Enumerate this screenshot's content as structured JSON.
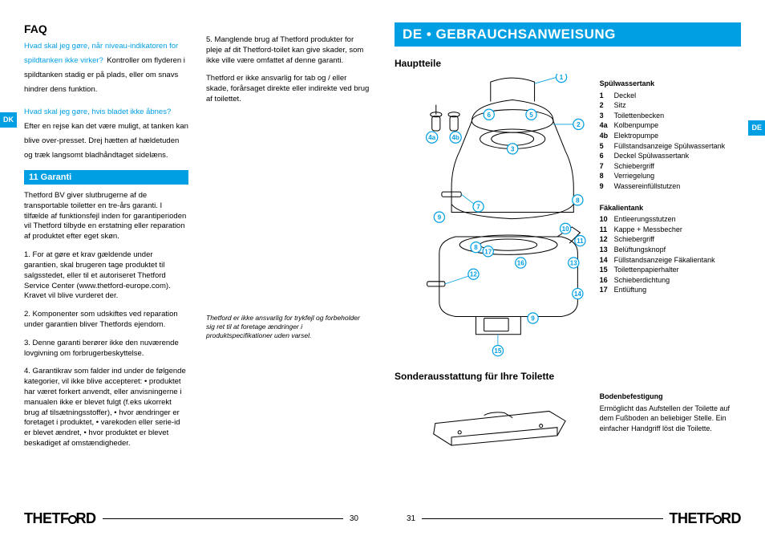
{
  "langTabs": {
    "left": "DK",
    "right": "DE"
  },
  "pageLeft": {
    "faqHeading": "FAQ",
    "faq": [
      {
        "q": "Hvad skal jeg gøre, når niveau-indikatoren for spildtanken ikke virker?",
        "a": "Kontroller om flyderen i spildtanken stadig er på plads, eller om snavs hindrer dens funktion."
      },
      {
        "q": "Hvad skal jeg gøre, hvis bladet ikke åbnes?",
        "a": "Efter en rejse kan det være muligt, at tanken kan blive over-presset. Drej hætten af hældetuden og træk langsomt bladhåndtaget sidelæns."
      }
    ],
    "sectionBar": "11  Garanti",
    "warrantyIntro": "Thetford BV giver slutbrugerne af de transportable toiletter en tre-års garanti. I tilfælde af funktionsfejl inden for garantiperioden vil Thetford tilbyde en erstatning eller reparation af produktet efter eget skøn.",
    "warrantyPoints": [
      "1. For at gøre et krav gældende under garantien, skal brugeren tage produktet til salgsstedet, eller til et autoriseret Thetford Service Center (www.thetford-europe.com). Kravet vil blive vurderet der.",
      "2. Komponenter som udskiftes ved reparation under garantien bliver Thetfords ejendom.",
      "3. Denne garanti berører ikke den nuværende lovgivning om forbrugerbeskyttelse.",
      "4. Garantikrav som falder ind under de følgende kategorier, vil ikke blive accepteret: • produktet har været forkert anvendt, eller anvisningerne i manualen ikke er blevet fulgt (f.eks ukorrekt brug af tilsætningsstoffer), • hvor ændringer er foretaget i produktet, • varekoden eller serie-id er blevet ændret, • hvor produktet er blevet beskadiget af omstændigheder."
    ],
    "col2": [
      "5. Manglende brug af Thetford produkter for pleje af dit Thetford-toilet kan give skader, som ikke ville være omfattet af denne garanti.",
      "Thetford er ikke ansvarlig for tab og / eller skade, forårsaget direkte eller indirekte ved brug af toilettet."
    ],
    "disclaimer": "Thetford er ikke ansvarlig for trykfejl og forbeholder sig ret til at foretage ændringer i produktspecifikationer uden varsel.",
    "pageNum": "30"
  },
  "pageRight": {
    "titleBar": "DE • GEBRAUCHSANWEISUNG",
    "mainHeading": "Hauptteile",
    "spuelTitle": "Spülwassertank",
    "spuel": [
      {
        "n": "1",
        "l": "Deckel"
      },
      {
        "n": "2",
        "l": "Sitz"
      },
      {
        "n": "3",
        "l": "Toilettenbecken"
      },
      {
        "n": "4a",
        "l": "Kolbenpumpe"
      },
      {
        "n": "4b",
        "l": "Elektropumpe"
      },
      {
        "n": "5",
        "l": "Füllstandsanzeige Spülwassertank"
      },
      {
        "n": "6",
        "l": "Deckel Spülwassertank"
      },
      {
        "n": "7",
        "l": "Schiebergriff"
      },
      {
        "n": "8",
        "l": "Verriegelung"
      },
      {
        "n": "9",
        "l": "Wassereinfüllstutzen"
      }
    ],
    "faekTitle": "Fäkalientank",
    "faek": [
      {
        "n": "10",
        "l": "Entleerungsstutzen"
      },
      {
        "n": "11",
        "l": "Kappe + Messbecher"
      },
      {
        "n": "12",
        "l": "Schiebergriff"
      },
      {
        "n": "13",
        "l": "Belüftungsknopf"
      },
      {
        "n": "14",
        "l": "Füllstandsanzeige Fäkalientank"
      },
      {
        "n": "15",
        "l": "Toilettenpapierhalter"
      },
      {
        "n": "16",
        "l": "Schieberdichtung"
      },
      {
        "n": "17",
        "l": "Entlüftung"
      }
    ],
    "accessoryHeading": "Sonderausstattung für Ihre Toilette",
    "bodenTitle": "Bodenbefestigung",
    "bodenText": "Ermöglicht das Aufstellen der Toilette auf dem Fußboden an beliebiger Stelle. Ein einfacher Handgriff löst die Toilette.",
    "pageNum": "31"
  },
  "logo": "THETFORD",
  "colors": {
    "brand": "#009fe3"
  }
}
